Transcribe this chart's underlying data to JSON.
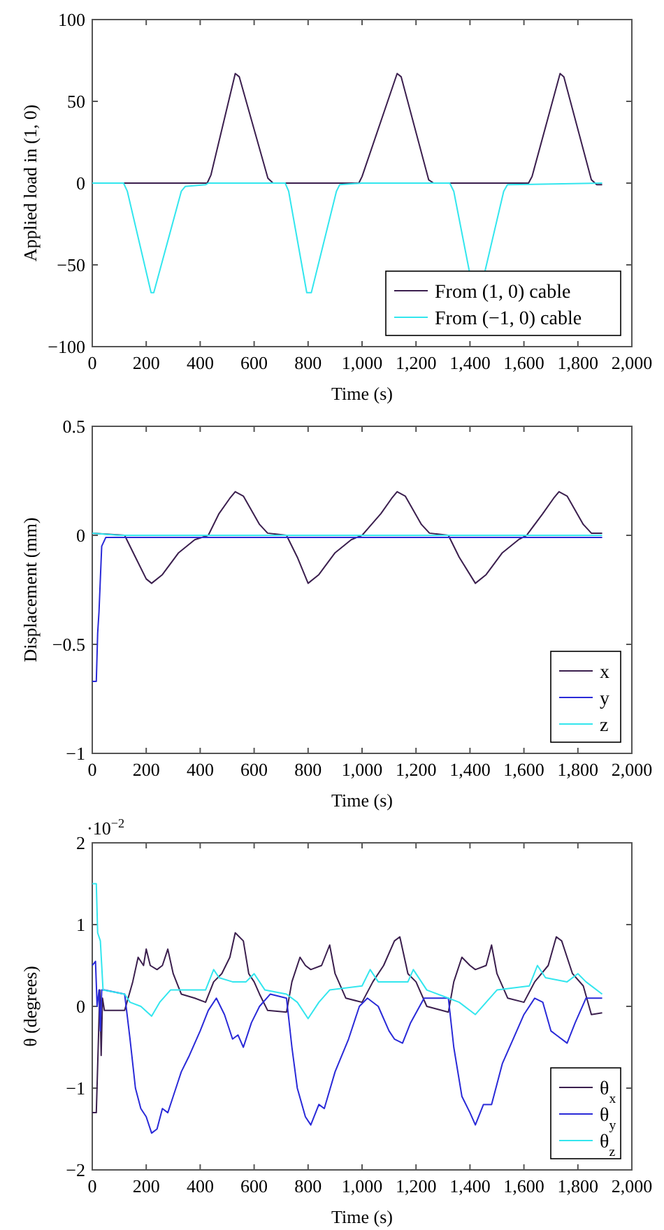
{
  "chart_data": [
    {
      "type": "line",
      "xlabel": "Time (s)",
      "ylabel": "Applied load in (1, 0)",
      "xlim": [
        0,
        2000
      ],
      "xticks": [
        0,
        200,
        400,
        600,
        800,
        {
          "value": 1000,
          "label": "1,000"
        },
        {
          "value": 1200,
          "label": "1,200"
        },
        {
          "value": 1400,
          "label": "1,400"
        },
        {
          "value": 1600,
          "label": "1,600"
        },
        {
          "value": 1800,
          "label": "1,800"
        },
        {
          "value": 2000,
          "label": "2,000"
        }
      ],
      "ylim": [
        -100,
        100
      ],
      "yticks": [
        {
          "value": -100,
          "label": "−100"
        },
        {
          "value": -50,
          "label": "−50"
        },
        0,
        50,
        100
      ],
      "legend": "bottom right",
      "series": [
        {
          "name": "From (1, 0) cable",
          "color": "#3b1f4e",
          "x": [
            0,
            426,
            440,
            530,
            545,
            651,
            670,
            988,
            1000,
            1130,
            1145,
            1247,
            1265,
            1617,
            1630,
            1734,
            1748,
            1850,
            1870,
            1890
          ],
          "values": [
            0,
            0,
            5,
            67,
            65,
            3,
            0,
            0,
            4,
            67,
            65,
            2,
            0,
            0,
            4,
            67,
            65,
            2,
            -1,
            -1
          ]
        },
        {
          "name": "From (−1, 0) cable",
          "color": "#33e6ee",
          "x": [
            0,
            116,
            130,
            218,
            228,
            330,
            345,
            420,
            430,
            715,
            728,
            795,
            812,
            905,
            917,
            1000,
            1325,
            1340,
            1399,
            1454,
            1525,
            1539,
            1890
          ],
          "values": [
            0,
            0,
            -5,
            -67,
            -67,
            -5,
            -2,
            -1,
            0,
            0,
            -5,
            -67,
            -67,
            -5,
            -1,
            0,
            0,
            -5,
            -55,
            -55,
            -5,
            -1,
            0
          ]
        }
      ]
    },
    {
      "type": "line",
      "xlabel": "Time (s)",
      "ylabel": "Displacement (mm)",
      "xlim": [
        0,
        2000
      ],
      "xticks": [
        0,
        200,
        400,
        600,
        800,
        {
          "value": 1000,
          "label": "1,000"
        },
        {
          "value": 1200,
          "label": "1,200"
        },
        {
          "value": 1400,
          "label": "1,400"
        },
        {
          "value": 1600,
          "label": "1,600"
        },
        {
          "value": 1800,
          "label": "1,800"
        },
        {
          "value": 2000,
          "label": "2,000"
        }
      ],
      "ylim": [
        -1,
        0.5
      ],
      "yticks": [
        {
          "value": -1,
          "label": "−1"
        },
        {
          "value": -0.5,
          "label": "−0.5"
        },
        0,
        0.5
      ],
      "legend": "bottom right",
      "series": [
        {
          "name": "x",
          "color": "#3b1f4e",
          "x": [
            0,
            120,
            160,
            200,
            220,
            260,
            320,
            380,
            430,
            470,
            510,
            530,
            560,
            620,
            650,
            720,
            760,
            800,
            840,
            900,
            960,
            1000,
            1070,
            1110,
            1130,
            1160,
            1220,
            1250,
            1320,
            1360,
            1420,
            1460,
            1520,
            1580,
            1610,
            1670,
            1710,
            1730,
            1760,
            1820,
            1850,
            1890
          ],
          "values": [
            0.01,
            0.0,
            -0.1,
            -0.2,
            -0.22,
            -0.18,
            -0.08,
            -0.02,
            0.0,
            0.1,
            0.17,
            0.2,
            0.18,
            0.05,
            0.01,
            0.0,
            -0.1,
            -0.22,
            -0.18,
            -0.08,
            -0.02,
            0.0,
            0.1,
            0.17,
            0.2,
            0.18,
            0.05,
            0.01,
            0.0,
            -0.1,
            -0.22,
            -0.18,
            -0.08,
            -0.02,
            0.0,
            0.1,
            0.17,
            0.2,
            0.18,
            0.05,
            0.01,
            0.01
          ]
        },
        {
          "name": "y",
          "color": "#2a2ad8",
          "x": [
            0,
            15,
            20,
            25,
            35,
            50,
            1890
          ],
          "values": [
            -0.67,
            -0.67,
            -0.45,
            -0.35,
            -0.05,
            -0.01,
            -0.01
          ]
        },
        {
          "name": "z",
          "color": "#33e6ee",
          "x": [
            0,
            100,
            1890
          ],
          "values": [
            0.01,
            0.0,
            0.0
          ]
        }
      ]
    },
    {
      "type": "line",
      "xlabel": "Time (s)",
      "ylabel": "θ (degrees)",
      "annotations": [
        "·10$^{−2}$"
      ],
      "xlim": [
        0,
        2000
      ],
      "xticks": [
        0,
        200,
        400,
        600,
        800,
        {
          "value": 1000,
          "label": "1,000"
        },
        {
          "value": 1200,
          "label": "1,200"
        },
        {
          "value": 1400,
          "label": "1,400"
        },
        {
          "value": 1600,
          "label": "1,600"
        },
        {
          "value": 1800,
          "label": "1,800"
        },
        {
          "value": 2000,
          "label": "2,000"
        }
      ],
      "ylim": [
        -2,
        2
      ],
      "yticks": [
        {
          "value": -2,
          "label": "−2"
        },
        {
          "value": -1,
          "label": "−1"
        },
        0,
        1,
        2
      ],
      "legend": "bottom right",
      "series": [
        {
          "name": "θ$_{x}$",
          "color": "#3b1f4e",
          "x": [
            0,
            15,
            22,
            28,
            33,
            38,
            45,
            120,
            150,
            170,
            190,
            200,
            215,
            240,
            260,
            280,
            300,
            330,
            380,
            420,
            450,
            480,
            510,
            530,
            560,
            580,
            600,
            620,
            650,
            720,
            740,
            770,
            790,
            810,
            850,
            880,
            900,
            940,
            1000,
            1040,
            1080,
            1120,
            1140,
            1170,
            1200,
            1240,
            1320,
            1340,
            1370,
            1400,
            1420,
            1460,
            1480,
            1500,
            1540,
            1600,
            1640,
            1690,
            1720,
            1740,
            1780,
            1820,
            1850,
            1890
          ],
          "values": [
            -1.3,
            -1.3,
            -0.5,
            0.2,
            -0.6,
            0.1,
            -0.05,
            -0.05,
            0.3,
            0.6,
            0.5,
            0.7,
            0.5,
            0.45,
            0.5,
            0.7,
            0.4,
            0.15,
            0.1,
            0.05,
            0.3,
            0.4,
            0.6,
            0.9,
            0.8,
            0.4,
            0.3,
            0.15,
            -0.05,
            -0.07,
            0.3,
            0.6,
            0.5,
            0.45,
            0.5,
            0.75,
            0.4,
            0.1,
            0.05,
            0.3,
            0.5,
            0.8,
            0.85,
            0.4,
            0.3,
            0.0,
            -0.07,
            0.3,
            0.6,
            0.5,
            0.45,
            0.5,
            0.75,
            0.4,
            0.1,
            0.05,
            0.3,
            0.5,
            0.85,
            0.8,
            0.4,
            0.25,
            -0.1,
            -0.08
          ]
        },
        {
          "name": "θ$_{y}$",
          "color": "#2a2ad8",
          "x": [
            0,
            12,
            18,
            25,
            30,
            35,
            45,
            120,
            140,
            160,
            180,
            200,
            220,
            240,
            260,
            280,
            300,
            330,
            360,
            400,
            430,
            460,
            490,
            520,
            540,
            560,
            590,
            620,
            660,
            720,
            740,
            760,
            790,
            810,
            840,
            860,
            900,
            950,
            990,
            1020,
            1060,
            1100,
            1120,
            1150,
            1180,
            1230,
            1320,
            1340,
            1370,
            1400,
            1420,
            1450,
            1480,
            1520,
            1560,
            1600,
            1640,
            1670,
            1700,
            1720,
            1760,
            1790,
            1830,
            1890
          ],
          "values": [
            0.5,
            0.55,
            0.0,
            0.2,
            -0.3,
            0.2,
            0.2,
            0.15,
            -0.4,
            -1.0,
            -1.25,
            -1.35,
            -1.55,
            -1.5,
            -1.25,
            -1.3,
            -1.1,
            -0.8,
            -0.6,
            -0.3,
            -0.05,
            0.1,
            -0.1,
            -0.4,
            -0.35,
            -0.5,
            -0.2,
            0.0,
            0.15,
            0.1,
            -0.5,
            -1.0,
            -1.35,
            -1.45,
            -1.2,
            -1.25,
            -0.8,
            -0.4,
            0.0,
            0.1,
            0.0,
            -0.3,
            -0.4,
            -0.45,
            -0.2,
            0.1,
            0.1,
            -0.5,
            -1.1,
            -1.3,
            -1.45,
            -1.2,
            -1.2,
            -0.7,
            -0.4,
            -0.1,
            0.1,
            0.05,
            -0.3,
            -0.35,
            -0.45,
            -0.2,
            0.1,
            0.1
          ]
        },
        {
          "name": "θ$_{z}$",
          "color": "#33e6ee",
          "x": [
            0,
            15,
            20,
            30,
            40,
            120,
            140,
            180,
            220,
            250,
            290,
            420,
            450,
            470,
            520,
            570,
            600,
            640,
            720,
            760,
            800,
            840,
            880,
            1000,
            1030,
            1060,
            1120,
            1170,
            1190,
            1240,
            1320,
            1360,
            1420,
            1460,
            1500,
            1620,
            1650,
            1680,
            1760,
            1800,
            1830,
            1890
          ],
          "values": [
            1.5,
            1.5,
            0.9,
            0.8,
            0.2,
            0.15,
            0.05,
            0.0,
            -0.12,
            0.05,
            0.2,
            0.2,
            0.45,
            0.35,
            0.3,
            0.3,
            0.4,
            0.2,
            0.15,
            0.05,
            -0.15,
            0.05,
            0.2,
            0.25,
            0.45,
            0.3,
            0.3,
            0.3,
            0.45,
            0.2,
            0.1,
            0.05,
            -0.1,
            0.05,
            0.2,
            0.25,
            0.5,
            0.35,
            0.3,
            0.4,
            0.3,
            0.15
          ]
        }
      ]
    }
  ]
}
